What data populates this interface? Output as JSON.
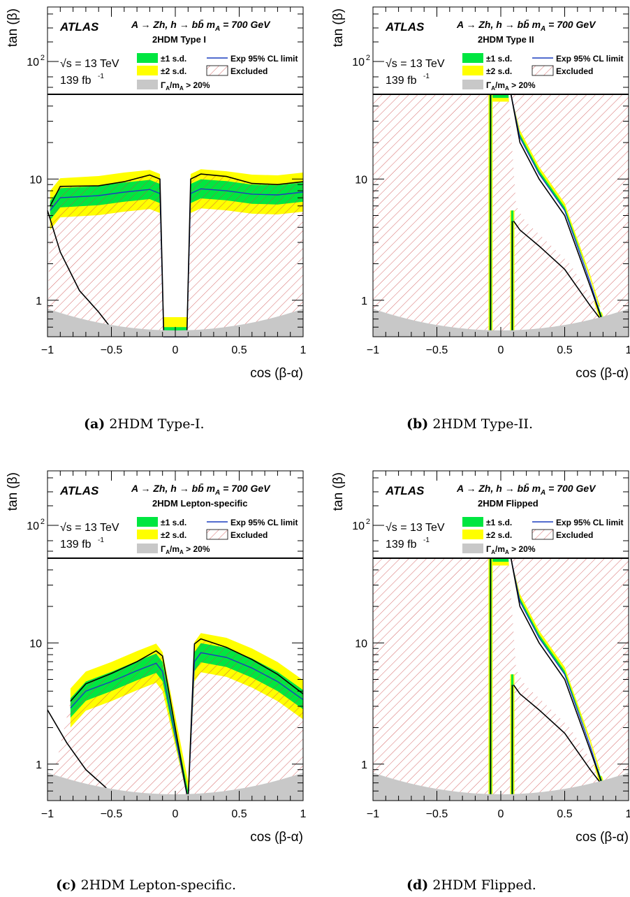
{
  "figure": {
    "captions": [
      {
        "tag": "(a)",
        "text": "2HDM Type-I."
      },
      {
        "tag": "(b)",
        "text": "2HDM Type-II."
      },
      {
        "tag": "(c)",
        "text": "2HDM Lepton-specific."
      },
      {
        "tag": "(d)",
        "text": "2HDM Flipped."
      }
    ]
  },
  "common": {
    "experiment": "ATLAS",
    "process": "A → Zh, h → bb̄ m",
    "process_sub": "A",
    "process_tail": " = 700 GeV",
    "energy": "√s = 13 TeV",
    "lumi": "139 fb",
    "lumi_sup": "-1",
    "legend": {
      "one_sd": "±1 s.d.",
      "two_sd": "±2 s.d.",
      "width": "Γ",
      "width_sub": "A",
      "width_mid": "/m",
      "width_sub2": "A",
      "width_tail": " > 20%",
      "exp": "Exp 95% CL limit",
      "excluded": "Excluded"
    },
    "xlabel": "cos (β-α)",
    "ylabel": "tan (β)",
    "xticks": [
      "−1",
      "−0.5",
      "0",
      "0.5",
      "1"
    ],
    "yticks": [
      "1",
      "10",
      "10"
    ],
    "ytick_sup": "2"
  },
  "colors": {
    "one_sd": "#00e640",
    "two_sd": "#ffff00",
    "width_region": "#c8c8c8",
    "exp_line": "#1a3dbf",
    "obs_line": "#000000",
    "hatch": "#c44"
  },
  "chart_data": [
    {
      "type": "area",
      "panel": "a",
      "model": "2HDM Type I",
      "xlim": [
        -1,
        1
      ],
      "ylim": [
        0.5,
        300
      ],
      "yscale": "log",
      "series": [
        {
          "name": "Exp 95% CL limit",
          "x": [
            -0.98,
            -0.9,
            -0.6,
            -0.4,
            -0.2,
            -0.12,
            -0.09,
            0.09,
            0.12,
            0.2,
            0.4,
            0.6,
            0.8,
            1.0
          ],
          "y": [
            5.5,
            7.0,
            7.3,
            7.8,
            8.2,
            7.6,
            0.5,
            0.5,
            7.6,
            8.3,
            8.0,
            7.5,
            7.4,
            7.8
          ]
        },
        {
          "name": "Observed",
          "x": [
            -0.98,
            -0.9,
            -0.6,
            -0.4,
            -0.2,
            -0.12,
            -0.09,
            0.09,
            0.12,
            0.2,
            0.4,
            0.6,
            0.8,
            1.0
          ],
          "y": [
            6.0,
            8.7,
            8.8,
            9.5,
            10.8,
            10.0,
            0.5,
            0.5,
            10.0,
            11.0,
            10.5,
            9.2,
            9.0,
            9.5
          ]
        }
      ]
    },
    {
      "type": "area",
      "panel": "b",
      "model": "2HDM Type II",
      "xlim": [
        -1,
        1
      ],
      "ylim": [
        0.5,
        300
      ],
      "yscale": "log",
      "series": [
        {
          "name": "Exp 95% CL limit",
          "x": [
            -0.08,
            0.08,
            0.15,
            0.3,
            0.5,
            0.7,
            0.8
          ],
          "y": [
            50,
            50,
            22,
            11,
            5.5,
            1.4,
            0.65
          ]
        },
        {
          "name": "Observed",
          "x": [
            -0.08,
            0.08,
            0.15,
            0.3,
            0.5,
            0.7,
            0.8
          ],
          "y": [
            50,
            50,
            20,
            10,
            5.0,
            1.3,
            0.65
          ]
        }
      ]
    },
    {
      "type": "area",
      "panel": "c",
      "model": "2HDM Lepton-specific",
      "xlim": [
        -1,
        1
      ],
      "ylim": [
        0.5,
        300
      ],
      "yscale": "log",
      "series": [
        {
          "name": "Exp 95% CL limit",
          "x": [
            -0.82,
            -0.7,
            -0.5,
            -0.3,
            -0.15,
            -0.1,
            0.1,
            0.15,
            0.2,
            0.4,
            0.6,
            0.8,
            1.0
          ],
          "y": [
            2.9,
            4.0,
            4.8,
            5.9,
            6.8,
            5.8,
            0.5,
            7.0,
            8.3,
            7.6,
            6.2,
            4.8,
            3.4
          ]
        },
        {
          "name": "Observed",
          "x": [
            -0.82,
            -0.7,
            -0.5,
            -0.3,
            -0.15,
            -0.1,
            0.1,
            0.15,
            0.2,
            0.4,
            0.6,
            0.8,
            1.0
          ],
          "y": [
            3.3,
            4.6,
            5.6,
            7.0,
            8.6,
            7.8,
            0.5,
            9.8,
            10.8,
            9.2,
            7.3,
            5.5,
            3.8
          ]
        }
      ]
    },
    {
      "type": "area",
      "panel": "d",
      "model": "2HDM Flipped",
      "xlim": [
        -1,
        1
      ],
      "ylim": [
        0.5,
        300
      ],
      "yscale": "log",
      "series": [
        {
          "name": "Exp 95% CL limit",
          "x": [
            -0.08,
            0.08,
            0.15,
            0.3,
            0.5,
            0.7,
            0.8
          ],
          "y": [
            50,
            50,
            22,
            11,
            5.5,
            1.4,
            0.65
          ]
        },
        {
          "name": "Observed",
          "x": [
            -0.08,
            0.08,
            0.15,
            0.3,
            0.5,
            0.7,
            0.8
          ],
          "y": [
            50,
            50,
            20,
            10,
            5.0,
            1.3,
            0.65
          ]
        }
      ]
    }
  ]
}
